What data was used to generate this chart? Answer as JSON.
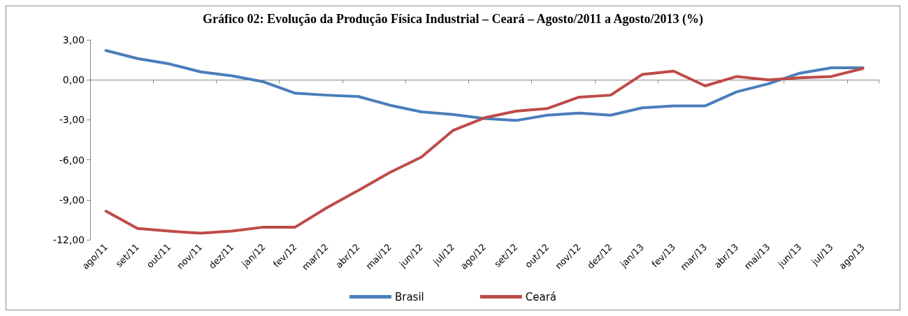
{
  "chart_data": {
    "type": "line",
    "title": "Gráfico 02: Evolução da Produção Física Industrial – Ceará – Agosto/2011 a Agosto/2013 (%)",
    "categories": [
      "ago/11",
      "set/11",
      "out/11",
      "nov/11",
      "dez/11",
      "jan/12",
      "fev/12",
      "mar/12",
      "abr/12",
      "mai/12",
      "jun/12",
      "jul/12",
      "ago/12",
      "set/12",
      "out/12",
      "nov/12",
      "dez/12",
      "jan/13",
      "fev/13",
      "mar/13",
      "abr/13",
      "mai/13",
      "jun/13",
      "jul/13",
      "ago/13"
    ],
    "series": [
      {
        "name": "Brasil",
        "color": "#4a7ebb",
        "values": [
          2.2,
          1.6,
          1.2,
          0.6,
          0.3,
          -0.15,
          -1.0,
          -1.15,
          -1.25,
          -1.9,
          -2.4,
          -2.6,
          -2.9,
          -3.05,
          -2.65,
          -2.5,
          -2.65,
          -2.1,
          -1.95,
          -1.95,
          -0.9,
          -0.3,
          0.5,
          0.9,
          0.9
        ]
      },
      {
        "name": "Ceará",
        "color": "#be4b48",
        "values": [
          -9.85,
          -11.15,
          -11.35,
          -11.5,
          -11.35,
          -11.05,
          -11.05,
          -9.6,
          -8.3,
          -6.95,
          -5.8,
          -3.8,
          -2.85,
          -2.35,
          -2.15,
          -1.3,
          -1.15,
          0.4,
          0.65,
          -0.45,
          0.25,
          0,
          0.15,
          0.25,
          0.85
        ]
      }
    ],
    "ylim": [
      -12,
      3
    ],
    "yticks": [
      {
        "value": -12,
        "label": "-12,00"
      },
      {
        "value": -9,
        "label": "-9,00"
      },
      {
        "value": -6,
        "label": "-6,00"
      },
      {
        "value": -3,
        "label": "-3,00"
      },
      {
        "value": 0,
        "label": "0,00"
      },
      {
        "value": 3,
        "label": "3,00"
      }
    ],
    "legend": "bottom",
    "marker": "none",
    "line_style": "solid"
  }
}
